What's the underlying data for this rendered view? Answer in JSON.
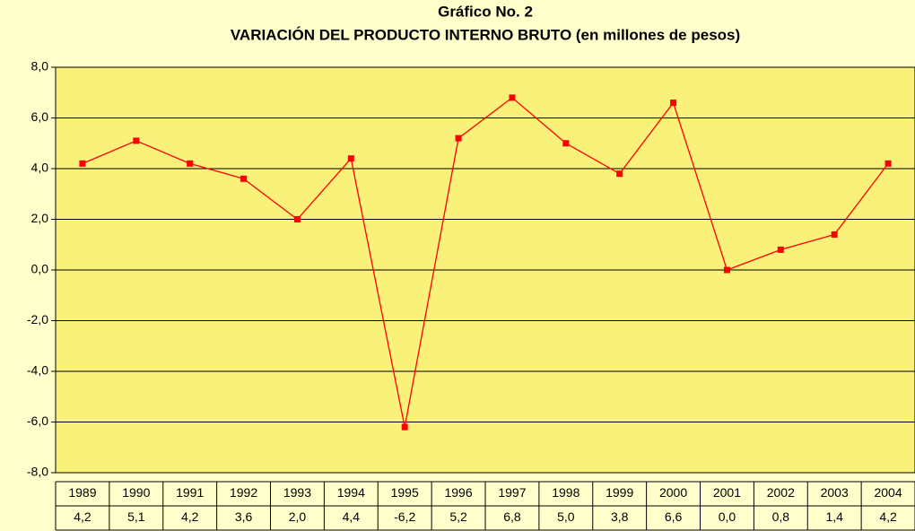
{
  "chart_data": {
    "type": "line",
    "title": "Gráfico No. 2",
    "subtitle": "VARIACIÓN DEL PRODUCTO INTERNO BRUTO (en millones de pesos)",
    "categories": [
      "1989",
      "1990",
      "1991",
      "1992",
      "1993",
      "1994",
      "1995",
      "1996",
      "1997",
      "1998",
      "1999",
      "2000",
      "2001",
      "2002",
      "2003",
      "2004"
    ],
    "values": [
      4.2,
      5.1,
      4.2,
      3.6,
      2.0,
      4.4,
      -6.2,
      5.2,
      6.8,
      5.0,
      3.8,
      6.6,
      0.0,
      0.8,
      1.4,
      4.2
    ],
    "value_labels": [
      "4,2",
      "5,1",
      "4,2",
      "3,6",
      "2,0",
      "4,4",
      "-6,2",
      "5,2",
      "6,8",
      "5,0",
      "3,8",
      "6,6",
      "0,0",
      "0,8",
      "1,4",
      "4,2"
    ],
    "color": "#ff0000",
    "ylim": [
      -8,
      8
    ],
    "yticks": [
      {
        "value": -8,
        "label": "-8,0"
      },
      {
        "value": -6,
        "label": "-6,0"
      },
      {
        "value": -4,
        "label": "-4,0"
      },
      {
        "value": -2,
        "label": "-2,0"
      },
      {
        "value": 0,
        "label": "0,0"
      },
      {
        "value": 2,
        "label": "2,0"
      },
      {
        "value": 4,
        "label": "4,0"
      },
      {
        "value": 6,
        "label": "6,0"
      },
      {
        "value": 8,
        "label": "8,0"
      }
    ],
    "grid": true
  }
}
